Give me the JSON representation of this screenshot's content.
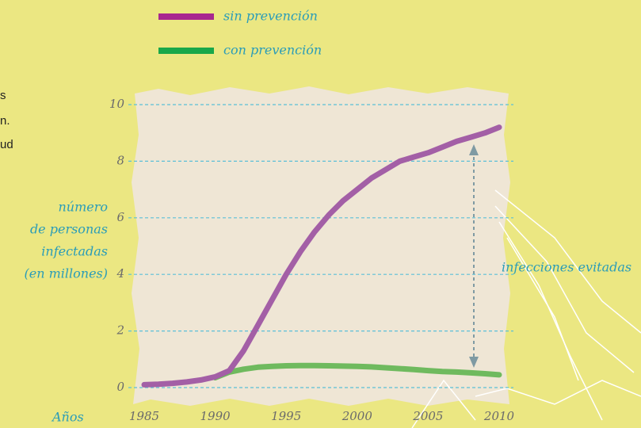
{
  "chart_data": {
    "type": "line",
    "x": [
      1985,
      1986,
      1987,
      1988,
      1989,
      1990,
      1991,
      1992,
      1993,
      1994,
      1995,
      1996,
      1997,
      1998,
      1999,
      2000,
      2001,
      2002,
      2003,
      2004,
      2005,
      2006,
      2007,
      2008,
      2009,
      2010
    ],
    "series": [
      {
        "name": "sin prevención",
        "color": "#a35fa6",
        "values": [
          0.1,
          0.12,
          0.15,
          0.2,
          0.27,
          0.38,
          0.6,
          1.3,
          2.2,
          3.1,
          4.0,
          4.8,
          5.5,
          6.1,
          6.6,
          7.0,
          7.4,
          7.7,
          8.0,
          8.15,
          8.3,
          8.5,
          8.7,
          8.85,
          9.0,
          9.2
        ]
      },
      {
        "name": "con prevención",
        "color": "#6fba5e",
        "values": [
          null,
          null,
          null,
          null,
          null,
          0.35,
          0.55,
          0.65,
          0.72,
          0.75,
          0.77,
          0.78,
          0.78,
          0.77,
          0.76,
          0.75,
          0.73,
          0.7,
          0.67,
          0.64,
          0.6,
          0.57,
          0.55,
          0.52,
          0.49,
          0.45
        ]
      }
    ],
    "xlim": [
      1985,
      2010
    ],
    "xticks": [
      1985,
      1990,
      1995,
      2000,
      2005,
      2010
    ],
    "ylim": [
      0,
      10
    ],
    "yticks": [
      0,
      2,
      4,
      6,
      8,
      10
    ],
    "grid": true,
    "y_label": [
      "número",
      "de personas",
      "infectadas",
      "(en millones)"
    ],
    "x_label": "Años",
    "annotation": "infecciones evitadas",
    "side_text": [
      "s",
      "n.",
      "ud"
    ]
  }
}
